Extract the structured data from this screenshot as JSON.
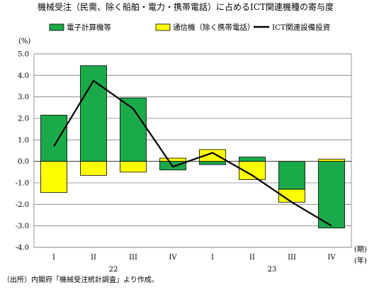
{
  "chart_data": {
    "type": "bar",
    "title": "機械受注（民需、除く船舶・電力・携帯電話）に占めるICT関連機種の寄与度",
    "unit_label": "(%)",
    "x_axis_unit_label": "(期)",
    "year_axis_unit_label": "(年)",
    "categories": [
      "I",
      "II",
      "III",
      "IV",
      "I",
      "II",
      "III",
      "IV"
    ],
    "years": [
      {
        "label": "22",
        "span": [
          0,
          3
        ]
      },
      {
        "label": "23",
        "span": [
          4,
          7
        ]
      }
    ],
    "ylim": [
      -4.0,
      5.0
    ],
    "yticks": [
      "5.0",
      "4.0",
      "3.0",
      "2.0",
      "1.0",
      "0.0",
      "-1.0",
      "-2.0",
      "-3.0",
      "-4.0"
    ],
    "grid": true,
    "legend_position": "top",
    "series": [
      {
        "name": "電子計算機等",
        "kind": "bar",
        "color": "#1aaa4a",
        "values": [
          2.15,
          4.45,
          2.95,
          -0.4,
          -0.15,
          0.2,
          -1.3,
          -3.1
        ]
      },
      {
        "name": "通信機（除く携帯電話）",
        "kind": "bar",
        "color": "#ffff00",
        "values": [
          -1.45,
          -0.65,
          -0.5,
          0.15,
          0.55,
          -0.85,
          -0.6,
          0.1
        ]
      },
      {
        "name": "ICT関連設備投資",
        "kind": "line",
        "color": "#000000",
        "values": [
          0.7,
          3.75,
          2.45,
          -0.25,
          0.4,
          -0.65,
          -1.9,
          -3.0
        ]
      }
    ],
    "source_note": "（出所）内閣府「機械受注統計調査」より作成。"
  }
}
